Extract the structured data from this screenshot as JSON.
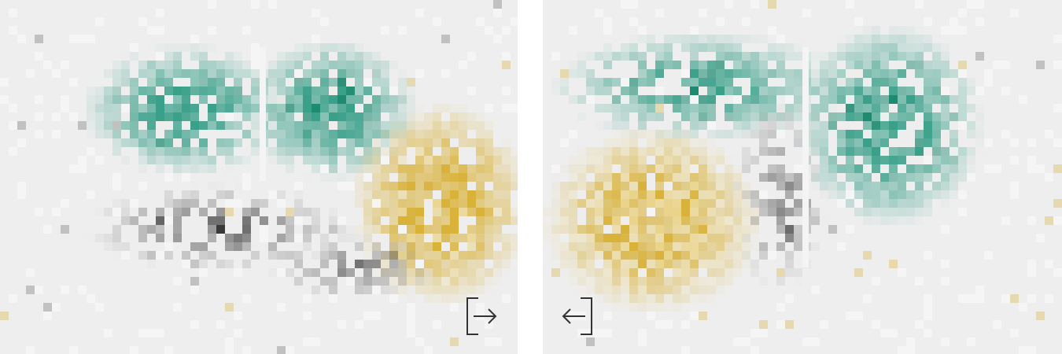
{
  "colors": {
    "background": "#eeeeee",
    "gutter": "#ffffff",
    "teal": "#3aa08a",
    "teal_dark": "#1e8a70",
    "gold": "#d9b23a",
    "gold_light": "#ead48c",
    "gray": "#6e6e6e",
    "black": "#111111",
    "icon_stroke": "#333333"
  },
  "panels": [
    {
      "name": "left-pane",
      "nav_icon": "exit-right-icon"
    },
    {
      "name": "right-pane",
      "nav_icon": "enter-left-icon"
    }
  ]
}
